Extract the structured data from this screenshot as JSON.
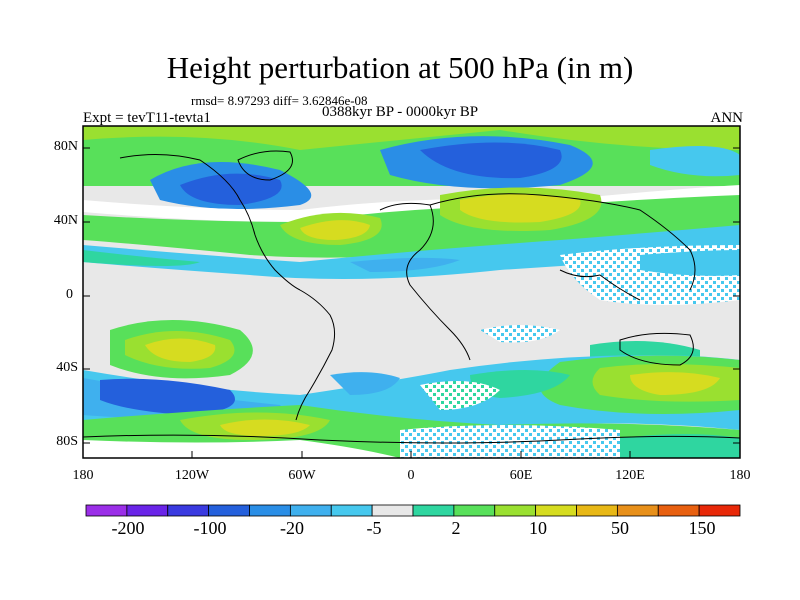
{
  "title": "Height perturbation at 500 hPa (in m)",
  "stats_line": "rmsd= 8.97293 diff= 3.62846e-08",
  "period": "0388kyr BP - 0000kyr BP",
  "experiment": "Expt = tevT11-tevta1",
  "season": "ANN",
  "lat_labels": [
    "80N",
    "40N",
    "0",
    "40S",
    "80S"
  ],
  "lon_labels": [
    "180",
    "120W",
    "60W",
    "0",
    "60E",
    "120E",
    "180"
  ],
  "colorbar": {
    "labels": [
      "-200",
      "-100",
      "-20",
      "-5",
      "2",
      "10",
      "50",
      "150"
    ],
    "colors": [
      "#9b2fe8",
      "#6a24e8",
      "#3a3ae0",
      "#2460dc",
      "#2a8ee6",
      "#3fb0ee",
      "#46c8ee",
      "#e8e8e8",
      "#2fd6a0",
      "#58e05a",
      "#9ae030",
      "#d6dc20",
      "#e8b816",
      "#e8901a",
      "#e86010",
      "#e82808"
    ]
  }
}
